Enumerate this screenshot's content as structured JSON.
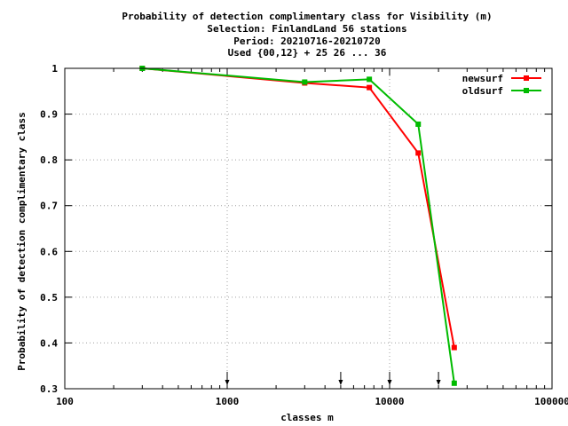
{
  "chart_data": {
    "type": "line",
    "title_lines": [
      "Probability of detection complimentary class  for Visibility (m)",
      "Selection: FinlandLand     56 stations",
      "Period: 20210716-20210720",
      "Used {00,12} + 25 26 ... 36"
    ],
    "xlabel": "classes m",
    "ylabel": "Probability of detection complimentary class",
    "xscale": "log",
    "xlim": [
      100,
      100000
    ],
    "ylim": [
      0.3,
      1.0
    ],
    "x_ticks": [
      100,
      1000,
      10000,
      100000
    ],
    "x_tick_labels": [
      "100",
      "1000",
      "10000",
      "100000"
    ],
    "y_ticks": [
      0.3,
      0.4,
      0.5,
      0.6,
      0.7,
      0.8,
      0.9,
      1.0
    ],
    "y_tick_labels": [
      "0.3",
      "0.4",
      "0.5",
      "0.6",
      "0.7",
      "0.8",
      "0.9",
      "1"
    ],
    "grid": true,
    "legend_position": "top-right",
    "threshold_arrows_x": [
      1000,
      5000,
      10000,
      20000
    ],
    "series": [
      {
        "name": "newsurf",
        "color": "#ff0000",
        "x": [
          300,
          3000,
          7500,
          15000,
          25000
        ],
        "y": [
          1.0,
          0.968,
          0.958,
          0.815,
          0.39
        ]
      },
      {
        "name": "oldsurf",
        "color": "#00bb00",
        "x": [
          300,
          3000,
          7500,
          15000,
          25000
        ],
        "y": [
          1.0,
          0.97,
          0.976,
          0.878,
          0.312
        ]
      }
    ]
  }
}
